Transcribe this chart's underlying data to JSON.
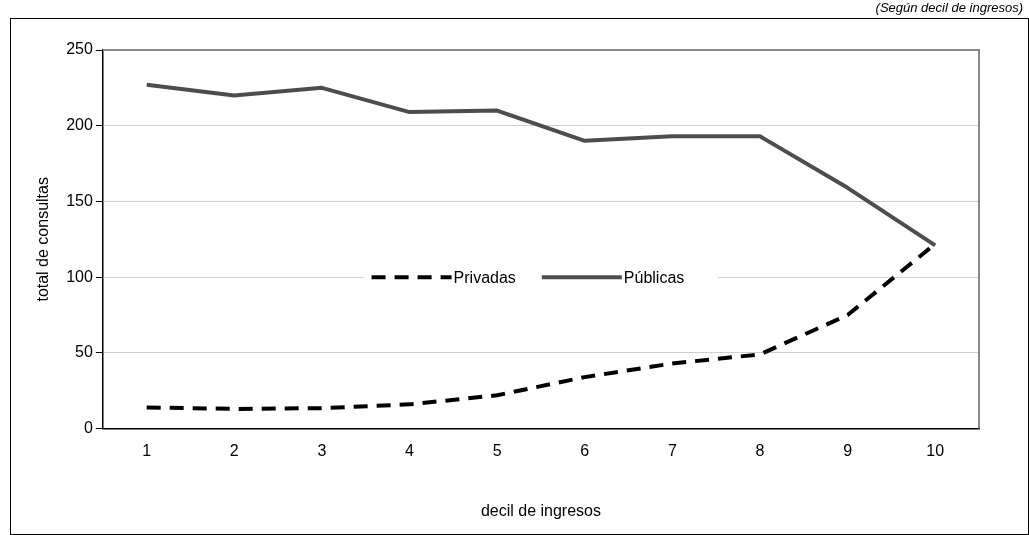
{
  "chart_data": {
    "type": "line",
    "subtitle": "(Según decil de ingresos)",
    "xlabel": "decil de ingresos",
    "ylabel": "total de consultas",
    "categories": [
      "1",
      "2",
      "3",
      "4",
      "5",
      "6",
      "7",
      "8",
      "9",
      "10"
    ],
    "series": [
      {
        "name": "Privadas",
        "color": "#000000",
        "line_style": "dashed",
        "values": [
          14,
          13,
          13.5,
          16,
          22,
          34,
          43,
          49,
          75,
          122
        ]
      },
      {
        "name": "Públicas",
        "color": "#4d4d4d",
        "line_style": "solid",
        "values": [
          227,
          220,
          225,
          209,
          210,
          190,
          193,
          193,
          159,
          121
        ]
      }
    ],
    "ylim": [
      0,
      250
    ],
    "yticks": [
      0,
      50,
      100,
      150,
      200,
      250
    ],
    "grid": "y",
    "legend": "center",
    "marker": "none"
  }
}
